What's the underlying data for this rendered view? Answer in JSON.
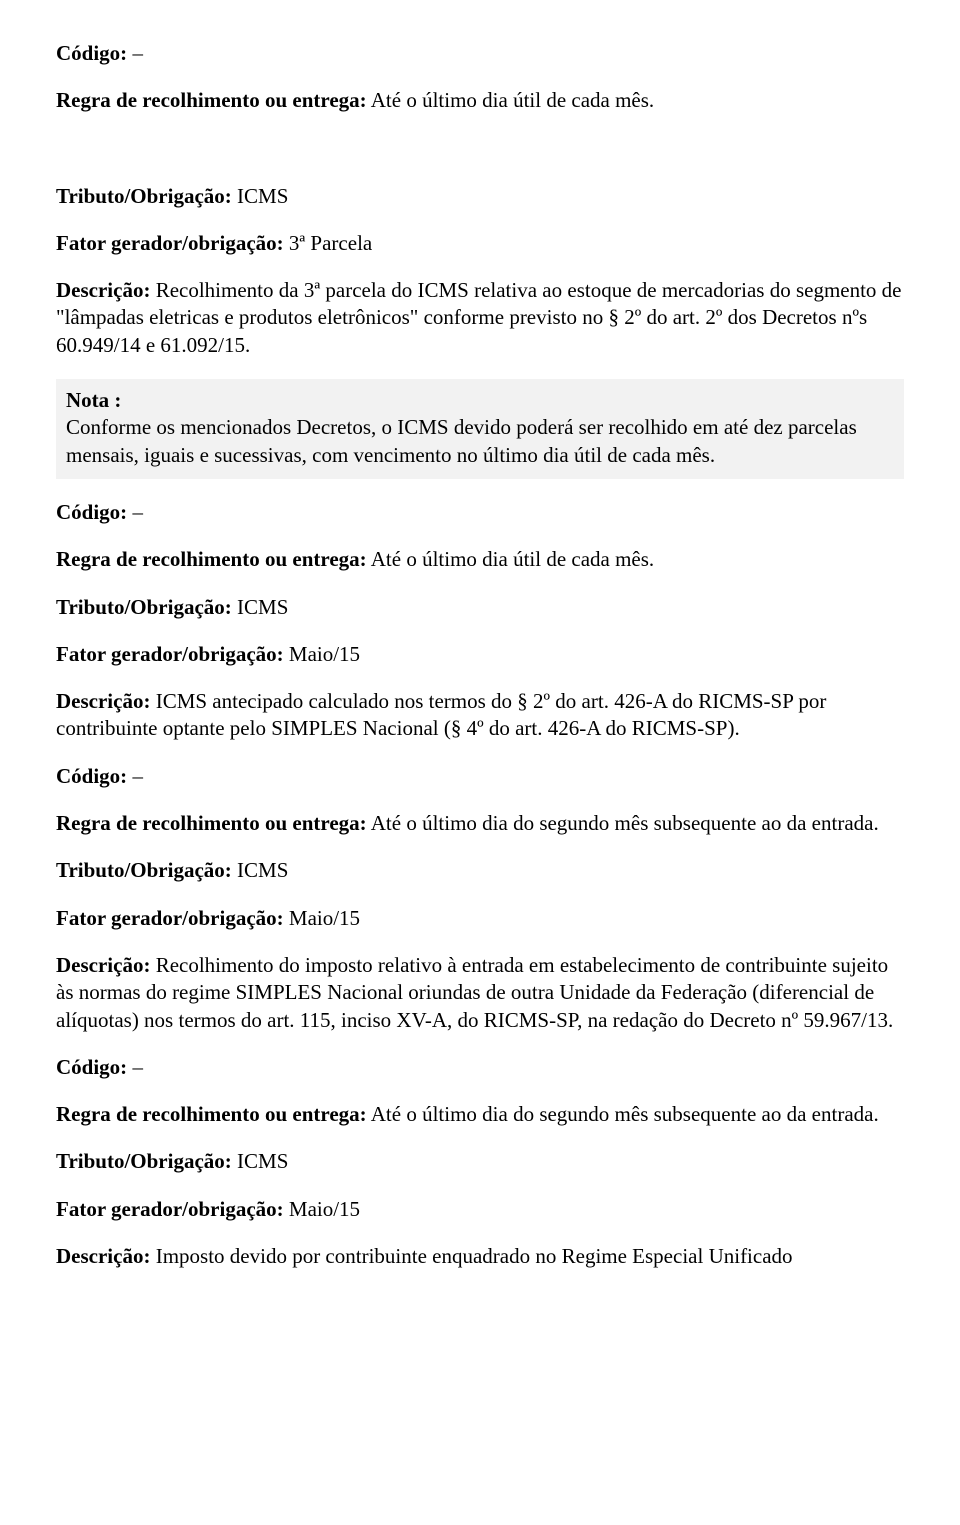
{
  "section1": {
    "codigo_label": "Código:",
    "codigo_value": "–",
    "regra_label": "Regra de recolhimento ou entrega:",
    "regra_value": "Até o último dia útil de cada mês."
  },
  "section2": {
    "tributo_label": "Tributo/Obrigação:",
    "tributo_value": "ICMS",
    "fator_label": "Fator gerador/obrigação:",
    "fator_value": "3ª Parcela",
    "descricao_label": "Descrição:",
    "descricao_value": "Recolhimento da 3ª parcela do ICMS relativa ao estoque de mercadorias do segmento de \"lâmpadas eletricas e produtos eletrônicos\" conforme previsto no § 2º do art. 2º dos Decretos nºs 60.949/14 e 61.092/15.",
    "nota_label": "Nota :",
    "nota_body": "Conforme os mencionados Decretos, o ICMS devido poderá ser recolhido em até dez parcelas mensais, iguais e sucessivas, com vencimento no último dia útil de cada mês.",
    "codigo_label": "Código:",
    "codigo_value": "–",
    "regra_label": "Regra de recolhimento ou entrega:",
    "regra_value": "Até o último dia útil de cada mês."
  },
  "section3": {
    "tributo_label": "Tributo/Obrigação:",
    "tributo_value": "ICMS",
    "fator_label": "Fator gerador/obrigação:",
    "fator_value": "Maio/15",
    "descricao_label": "Descrição:",
    "descricao_value": "ICMS antecipado calculado nos termos do § 2º do art. 426-A do RICMS-SP por contribuinte optante pelo SIMPLES Nacional (§ 4º do art. 426-A do RICMS-SP).",
    "codigo_label": "Código:",
    "codigo_value": "–",
    "regra_label": "Regra de recolhimento ou entrega:",
    "regra_value": "Até o último dia do segundo mês subsequente ao da entrada."
  },
  "section4": {
    "tributo_label": "Tributo/Obrigação:",
    "tributo_value": "ICMS",
    "fator_label": "Fator gerador/obrigação:",
    "fator_value": "Maio/15",
    "descricao_label": "Descrição:",
    "descricao_value": "Recolhimento do imposto relativo à entrada em estabelecimento de contribuinte sujeito às normas do regime SIMPLES Nacional oriundas de outra Unidade da Federação (diferencial de alíquotas) nos termos do art. 115, inciso XV-A, do RICMS-SP, na redação do Decreto nº 59.967/13.",
    "codigo_label": "Código:",
    "codigo_value": "–",
    "regra_label": "Regra de recolhimento ou entrega:",
    "regra_value": "Até o último dia do segundo mês subsequente ao da entrada."
  },
  "section5": {
    "tributo_label": "Tributo/Obrigação:",
    "tributo_value": "ICMS",
    "fator_label": "Fator gerador/obrigação:",
    "fator_value": "Maio/15",
    "descricao_label": "Descrição:",
    "descricao_value": "Imposto devido por contribuinte enquadrado no Regime Especial Unificado"
  }
}
